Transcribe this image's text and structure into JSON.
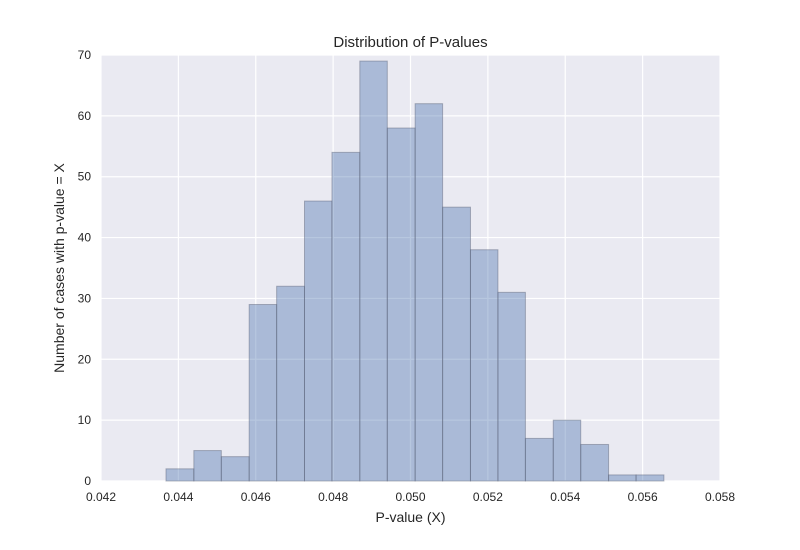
{
  "chart_data": {
    "type": "bar",
    "subtype": "histogram",
    "title": "Distribution of P-values",
    "xlabel": "P-value (X)",
    "ylabel": "Number of cases with p-value = X",
    "xlim": [
      0.042,
      0.058
    ],
    "ylim": [
      0,
      70
    ],
    "xticks": [
      0.042,
      0.044,
      0.046,
      0.048,
      0.05,
      0.052,
      0.054,
      0.056,
      0.058
    ],
    "xtick_labels": [
      "0.042",
      "0.044",
      "0.046",
      "0.048",
      "0.050",
      "0.052",
      "0.054",
      "0.056",
      "0.058"
    ],
    "yticks": [
      0,
      10,
      20,
      30,
      40,
      50,
      60,
      70
    ],
    "ytick_labels": [
      "0",
      "10",
      "20",
      "30",
      "40",
      "50",
      "60",
      "70"
    ],
    "bin_edges": [
      0.04368,
      0.0444,
      0.04511,
      0.04583,
      0.04654,
      0.04726,
      0.04797,
      0.04869,
      0.0494,
      0.05012,
      0.05083,
      0.05155,
      0.05226,
      0.05297,
      0.05369,
      0.0544,
      0.05512,
      0.05583,
      0.05655
    ],
    "values": [
      2,
      5,
      4,
      29,
      32,
      46,
      54,
      69,
      58,
      62,
      45,
      38,
      31,
      7,
      10,
      6,
      1,
      1
    ],
    "grid": true,
    "colors": {
      "bar_fill": "#4c72b0",
      "bar_opacity": "0.4",
      "bar_edge": "#5a6175",
      "plot_background": "#eaeaf2",
      "grid": "#ffffff",
      "text": "#262626"
    }
  }
}
